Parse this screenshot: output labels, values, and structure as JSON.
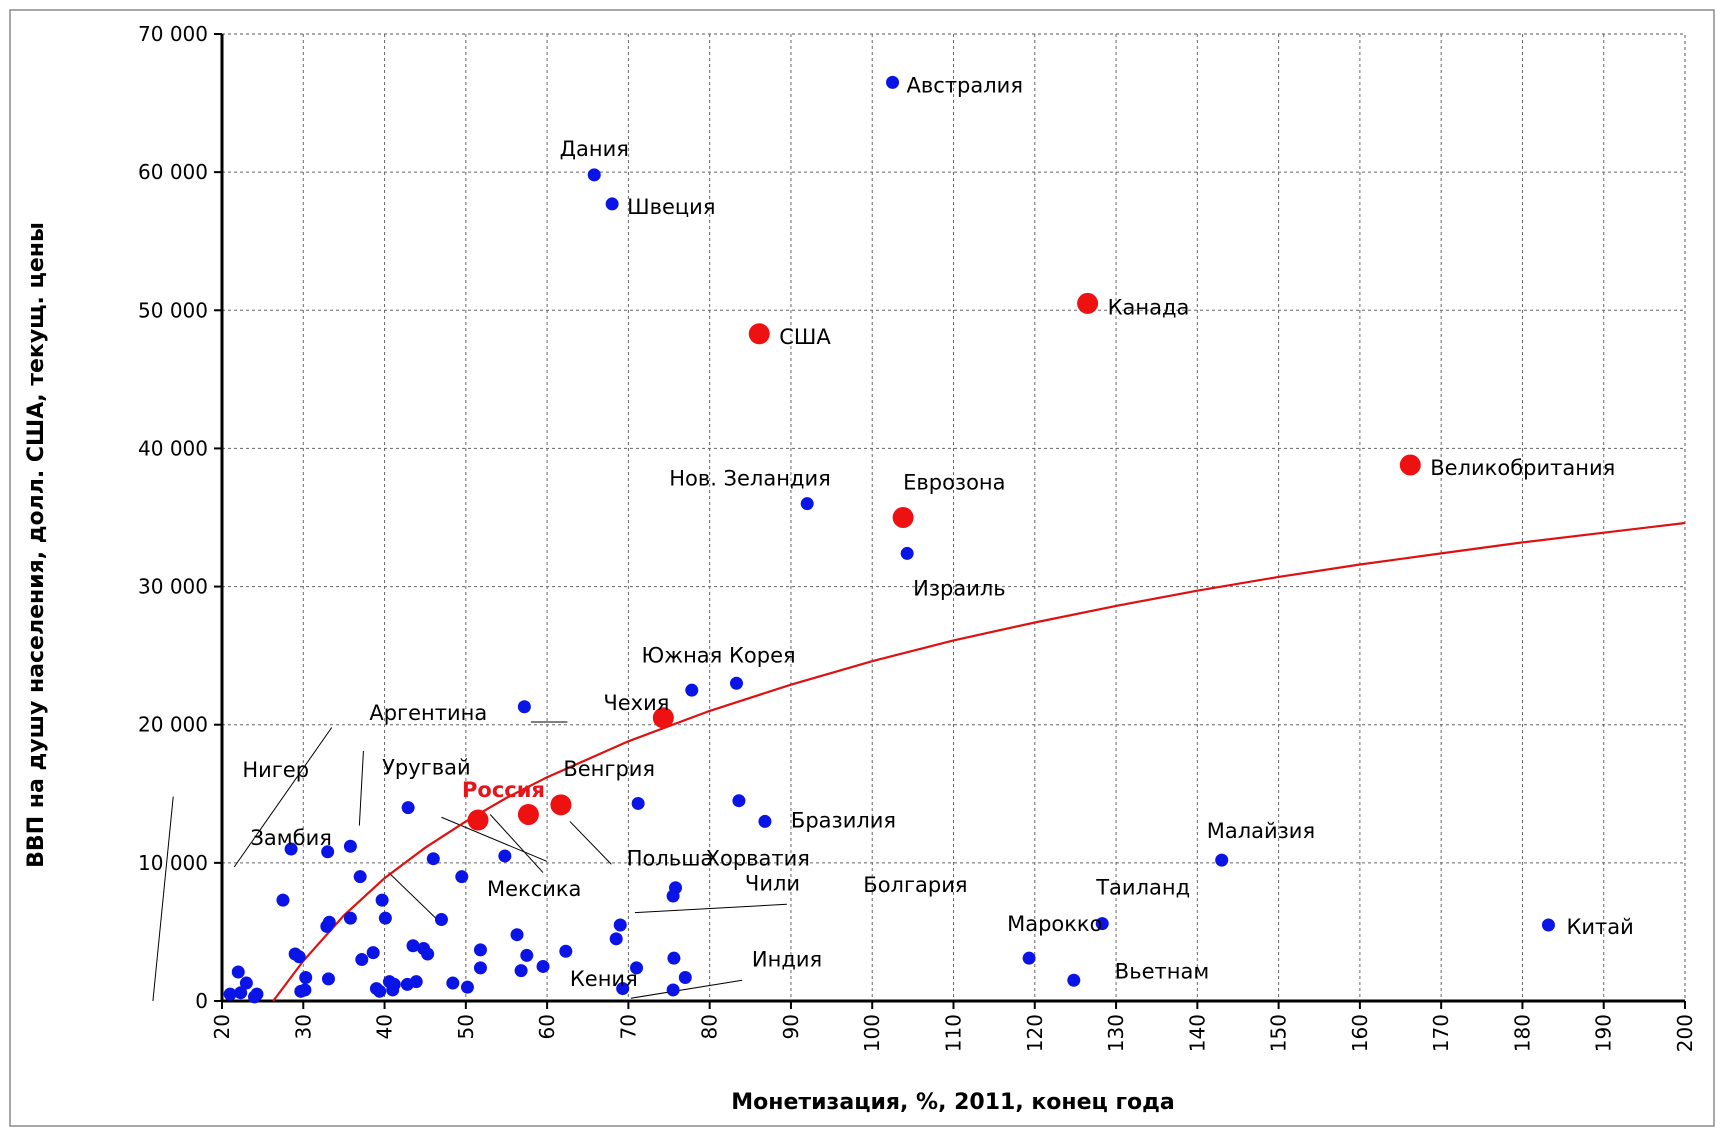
{
  "chart_data": {
    "type": "scatter",
    "title": "",
    "xlabel": "Монетизация, %, 2011, конец года",
    "ylabel": "ВВП на душу населения, долл. США, текущ. цены",
    "xlim": [
      20,
      200
    ],
    "ylim": [
      0,
      70000
    ],
    "x_ticks": [
      "20",
      "30",
      "40",
      "50",
      "60",
      "70",
      "80",
      "90",
      "100",
      "110",
      "120",
      "130",
      "140",
      "150",
      "160",
      "170",
      "180",
      "190",
      "200"
    ],
    "y_ticks": [
      "0",
      "10 000",
      "20 000",
      "30 000",
      "40 000",
      "50 000",
      "60 000",
      "70 000"
    ],
    "grid": true,
    "colors": {
      "points": "#0a14e6",
      "highlight": "#ee1111",
      "trend": "#dd1111"
    },
    "series": [
      {
        "points": [
          {
            "x": 102.5,
            "y": 66500,
            "label": "Австралия"
          },
          {
            "x": 65.8,
            "y": 59800,
            "label": "Дания"
          },
          {
            "x": 68.0,
            "y": 57700,
            "label": "Швеция"
          },
          {
            "x": 92.0,
            "y": 36000,
            "label": "Нов. Зеландия"
          },
          {
            "x": 104.3,
            "y": 32400,
            "label": "Израиль"
          },
          {
            "x": 83.3,
            "y": 23000,
            "label": "Южная Корея"
          },
          {
            "x": 57.2,
            "y": 21300,
            "label": "Аргентина"
          },
          {
            "x": 77.8,
            "y": 22500
          },
          {
            "x": 83.6,
            "y": 14500,
            "label": "Чили"
          },
          {
            "x": 86.8,
            "y": 13000,
            "label": "Бразилия"
          },
          {
            "x": 71.2,
            "y": 14300
          },
          {
            "x": 143.0,
            "y": 10200,
            "label": "Малайзия"
          },
          {
            "x": 183.2,
            "y": 5500,
            "label": "Китай"
          },
          {
            "x": 128.3,
            "y": 5600,
            "label": "Таиланд"
          },
          {
            "x": 119.3,
            "y": 3100,
            "label": "Марокко"
          },
          {
            "x": 124.8,
            "y": 1500,
            "label": "Вьетнам"
          },
          {
            "x": 42.9,
            "y": 14000
          },
          {
            "x": 28.5,
            "y": 11000
          },
          {
            "x": 33.0,
            "y": 10800
          },
          {
            "x": 35.8,
            "y": 11200
          },
          {
            "x": 54.8,
            "y": 10500
          },
          {
            "x": 46.0,
            "y": 10300
          },
          {
            "x": 37.0,
            "y": 9000
          },
          {
            "x": 49.5,
            "y": 9000
          },
          {
            "x": 39.7,
            "y": 7300
          },
          {
            "x": 27.5,
            "y": 7300
          },
          {
            "x": 40.1,
            "y": 6000
          },
          {
            "x": 35.8,
            "y": 6000
          },
          {
            "x": 33.2,
            "y": 5700
          },
          {
            "x": 32.9,
            "y": 5400
          },
          {
            "x": 47.0,
            "y": 5900
          },
          {
            "x": 75.8,
            "y": 8200
          },
          {
            "x": 75.5,
            "y": 7600
          },
          {
            "x": 69.0,
            "y": 5500
          },
          {
            "x": 68.5,
            "y": 4500
          },
          {
            "x": 56.3,
            "y": 4800
          },
          {
            "x": 43.5,
            "y": 4000
          },
          {
            "x": 44.8,
            "y": 3800
          },
          {
            "x": 45.3,
            "y": 3400
          },
          {
            "x": 51.8,
            "y": 3700
          },
          {
            "x": 57.5,
            "y": 3300
          },
          {
            "x": 62.3,
            "y": 3600
          },
          {
            "x": 75.6,
            "y": 3100
          },
          {
            "x": 38.6,
            "y": 3500
          },
          {
            "x": 37.2,
            "y": 3000
          },
          {
            "x": 29.0,
            "y": 3400
          },
          {
            "x": 29.5,
            "y": 3200
          },
          {
            "x": 22.0,
            "y": 2100
          },
          {
            "x": 23.0,
            "y": 1300
          },
          {
            "x": 30.3,
            "y": 1700
          },
          {
            "x": 33.1,
            "y": 1600
          },
          {
            "x": 40.6,
            "y": 1400
          },
          {
            "x": 41.2,
            "y": 1200
          },
          {
            "x": 42.8,
            "y": 1200
          },
          {
            "x": 43.9,
            "y": 1400
          },
          {
            "x": 48.4,
            "y": 1300
          },
          {
            "x": 50.2,
            "y": 1000
          },
          {
            "x": 51.8,
            "y": 2400
          },
          {
            "x": 56.8,
            "y": 2200
          },
          {
            "x": 59.5,
            "y": 2500
          },
          {
            "x": 71.0,
            "y": 2400
          },
          {
            "x": 77.0,
            "y": 1700
          },
          {
            "x": 69.3,
            "y": 900
          },
          {
            "x": 75.5,
            "y": 800
          },
          {
            "x": 39.0,
            "y": 900
          },
          {
            "x": 39.4,
            "y": 700
          },
          {
            "x": 41.0,
            "y": 800
          },
          {
            "x": 30.2,
            "y": 800
          },
          {
            "x": 29.7,
            "y": 700
          },
          {
            "x": 21.0,
            "y": 500
          },
          {
            "x": 22.3,
            "y": 600
          },
          {
            "x": 24.3,
            "y": 500
          },
          {
            "x": 24.0,
            "y": 300
          }
        ]
      },
      {
        "points": [
          {
            "x": 86.1,
            "y": 48300,
            "label": "США"
          },
          {
            "x": 126.5,
            "y": 50500,
            "label": "Канада"
          },
          {
            "x": 166.2,
            "y": 38800,
            "label": "Великобритания"
          },
          {
            "x": 103.8,
            "y": 35000,
            "label": "Еврозона"
          },
          {
            "x": 74.3,
            "y": 20500,
            "label": "Чехия"
          },
          {
            "x": 51.5,
            "y": 13100,
            "label": "Россия"
          },
          {
            "x": 57.7,
            "y": 13500
          },
          {
            "x": 61.7,
            "y": 14200
          }
        ]
      }
    ],
    "trend": {
      "points": [
        [
          26.3,
          0
        ],
        [
          30,
          2900
        ],
        [
          35,
          6200
        ],
        [
          40,
          8900
        ],
        [
          45,
          11100
        ],
        [
          50,
          13000
        ],
        [
          55,
          14700
        ],
        [
          60,
          16200
        ],
        [
          70,
          18800
        ],
        [
          80,
          21000
        ],
        [
          90,
          22900
        ],
        [
          100,
          24600
        ],
        [
          110,
          26100
        ],
        [
          120,
          27400
        ],
        [
          130,
          28600
        ],
        [
          140,
          29700
        ],
        [
          150,
          30700
        ],
        [
          160,
          31600
        ],
        [
          170,
          32400
        ],
        [
          180,
          33200
        ],
        [
          190,
          33900
        ],
        [
          200,
          34600
        ]
      ]
    },
    "extra_labels": [
      "Нигер",
      "Замбия",
      "Уругвай",
      "Венгрия",
      "Польша",
      "Хорватия",
      "Мексика",
      "Болгария",
      "Кения",
      "Индия"
    ]
  }
}
